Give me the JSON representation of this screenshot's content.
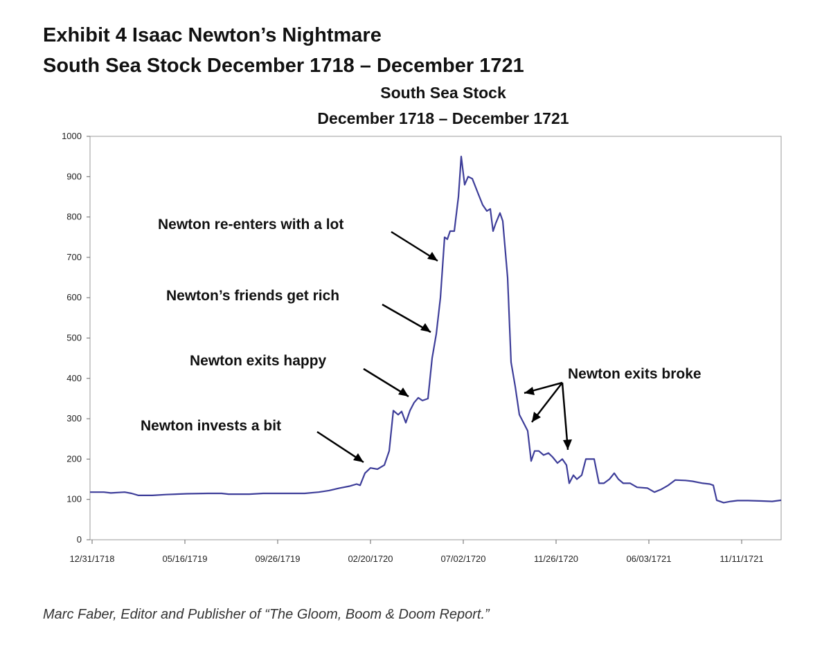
{
  "chart_data": {
    "type": "line",
    "heading": [
      "Exhibit 4  Isaac Newton’s Nightmare",
      "South Sea Stock December 1718 – December 1721"
    ],
    "title": [
      "South Sea Stock",
      "December 1718 – December 1721"
    ],
    "x": [
      -3,
      17,
      27,
      47,
      57,
      67,
      87,
      107,
      137,
      167,
      187,
      197,
      227,
      247,
      267,
      307,
      327,
      342,
      357,
      372,
      382,
      387,
      394,
      402,
      412,
      422,
      429,
      435,
      442,
      447,
      453,
      459,
      465,
      471,
      477,
      485,
      491,
      497,
      503,
      509,
      513,
      517,
      523,
      529,
      533,
      538,
      543,
      549,
      557,
      564,
      570,
      575,
      579,
      583,
      589,
      593,
      600,
      605,
      611,
      617,
      623,
      629,
      634,
      639,
      645,
      652,
      659,
      665,
      672,
      679,
      685,
      689,
      695,
      700,
      707,
      713,
      719,
      725,
      732,
      739,
      747,
      754,
      760,
      767,
      777,
      787,
      802,
      812,
      822,
      832,
      842,
      857,
      867,
      882,
      892,
      897,
      902,
      912,
      922,
      932,
      947,
      967,
      982,
      995
    ],
    "values": [
      118,
      118,
      116,
      118,
      115,
      110,
      110,
      112,
      114,
      115,
      115,
      113,
      113,
      115,
      115,
      115,
      118,
      122,
      128,
      133,
      138,
      135,
      165,
      178,
      175,
      185,
      220,
      320,
      310,
      318,
      290,
      320,
      340,
      352,
      345,
      350,
      450,
      510,
      600,
      750,
      745,
      765,
      765,
      850,
      950,
      880,
      900,
      895,
      860,
      830,
      815,
      820,
      765,
      785,
      810,
      790,
      650,
      440,
      380,
      310,
      290,
      270,
      195,
      220,
      220,
      210,
      215,
      205,
      190,
      200,
      185,
      140,
      160,
      150,
      160,
      200,
      200,
      200,
      140,
      140,
      150,
      165,
      150,
      140,
      140,
      130,
      128,
      118,
      125,
      135,
      148,
      147,
      145,
      140,
      138,
      135,
      98,
      92,
      95,
      97,
      97,
      96,
      95,
      98
    ],
    "color": "#3d3d99",
    "xlim": [
      -3,
      995
    ],
    "xticks": [
      {
        "value": 0,
        "label": "12/31/1718"
      },
      {
        "value": 134,
        "label": "05/16/1719"
      },
      {
        "value": 268,
        "label": "09/26/1719"
      },
      {
        "value": 402,
        "label": "02/20/1720"
      },
      {
        "value": 536,
        "label": "07/02/1720"
      },
      {
        "value": 670,
        "label": "11/26/1720"
      },
      {
        "value": 804,
        "label": "06/03/1721"
      },
      {
        "value": 938,
        "label": "11/11/1721"
      }
    ],
    "ylim": [
      0,
      1000
    ],
    "yticks": [
      0,
      100,
      200,
      300,
      400,
      500,
      600,
      700,
      800,
      900,
      1000
    ],
    "grid": false,
    "annotations": [
      "Newton re-enters with a lot",
      "Newton’s friends get rich",
      "Newton exits happy",
      "Newton invests a bit",
      "Newton exits broke"
    ],
    "source": "Marc Faber, Editor and Publisher of “The Gloom, Boom & Doom Report.”"
  }
}
